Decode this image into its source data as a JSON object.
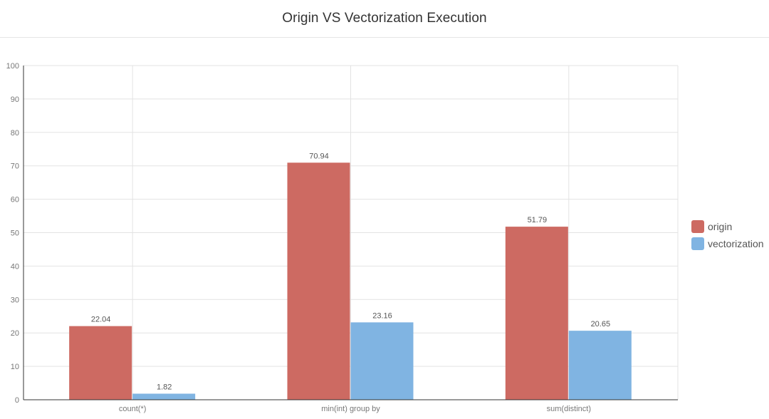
{
  "chart_data": {
    "type": "bar",
    "title": "Origin VS Vectorization Execution",
    "categories": [
      "count(*)",
      "min(int) group by",
      "sum(distinct)"
    ],
    "series": [
      {
        "name": "origin",
        "values": [
          22.04,
          70.94,
          51.79
        ],
        "color": "#cd6a62"
      },
      {
        "name": "vectorization",
        "values": [
          1.82,
          23.16,
          20.65
        ],
        "color": "#80b4e2"
      }
    ],
    "value_labels": [
      [
        "22.04",
        "70.94",
        "51.79"
      ],
      [
        "1.82",
        "23.16",
        "20.65"
      ]
    ],
    "ylim": [
      0,
      100
    ],
    "yticks": [
      "0",
      "10",
      "20",
      "30",
      "40",
      "50",
      "60",
      "70",
      "80",
      "90",
      "100"
    ],
    "xlabel": "",
    "ylabel": "",
    "grid": true,
    "legend_position": "right"
  }
}
